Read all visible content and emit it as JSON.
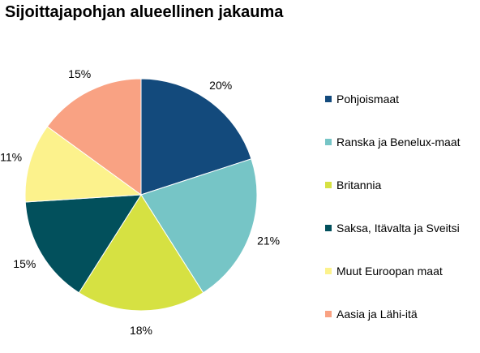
{
  "chart_data": {
    "type": "pie",
    "title": "Sijoittajapohjan alueellinen jakauma",
    "categories": [
      "Pohjoismaat",
      "Ranska ja Benelux-maat",
      "Britannia",
      "Saksa, Itävalta ja Sveitsi",
      "Muut Euroopan maat",
      "Aasia ja Lähi-itä"
    ],
    "values": [
      20,
      21,
      18,
      15,
      11,
      15
    ],
    "labels": [
      "20%",
      "21%",
      "18%",
      "15%",
      "11%",
      "15%"
    ],
    "colors": [
      "#134A7C",
      "#76C5C6",
      "#D6E142",
      "#02505C",
      "#FCF28C",
      "#F9A283"
    ],
    "legend_position": "right"
  }
}
